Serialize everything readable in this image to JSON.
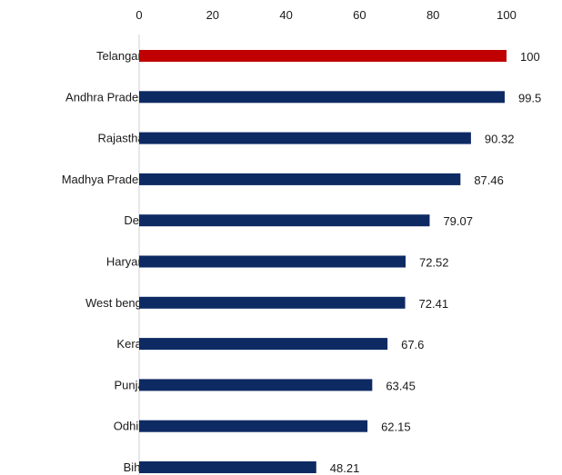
{
  "chart_data": {
    "type": "bar",
    "orientation": "horizontal",
    "title": "",
    "xlabel": "",
    "ylabel": "",
    "xlim": [
      0,
      100
    ],
    "x_ticks": [
      0,
      20,
      40,
      60,
      80,
      100
    ],
    "x_axis_position": "top",
    "grid": false,
    "legend": "none",
    "categories": [
      "Telangana",
      "Andhra Pradesh",
      "Rajasthan",
      "Madhya Pradesh",
      "Delhi",
      "Haryana",
      "West bengal",
      "Kerala",
      "Punjab",
      "Odhisa",
      "Bihar"
    ],
    "values": [
      100,
      99.5,
      90.32,
      87.46,
      79.07,
      72.52,
      72.41,
      67.6,
      63.45,
      62.15,
      48.21
    ],
    "value_labels": [
      "100",
      "99.5",
      "90.32",
      "87.46",
      "79.07",
      "72.52",
      "72.41",
      "67.6",
      "63.45",
      "62.15",
      "48.21"
    ],
    "highlight_index": 0,
    "colors": {
      "bar": "#0e2a63",
      "highlight": "#c00000",
      "axis": "#d0d0d0",
      "text": "#1a1a1a"
    }
  }
}
